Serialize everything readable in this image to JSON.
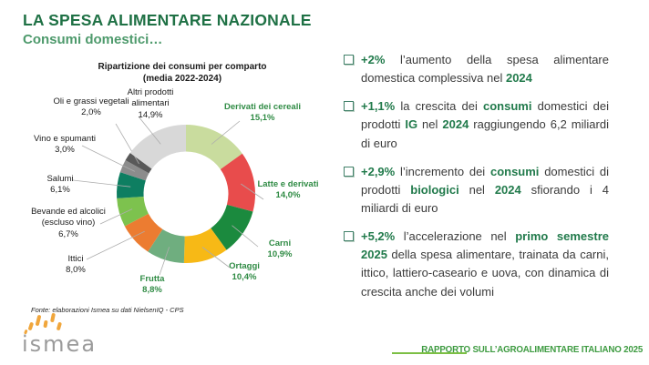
{
  "slide": {
    "title": "LA SPESA ALIMENTARE NAZIONALE",
    "subtitle": "Consumi domestici…",
    "source": "Fonte: elaborazioni Ismea su dati NielsenIQ - CPS",
    "footer": "RAPPORTO SULL’AGROALIMENTARE ITALIANO 2025",
    "logo_text": "ismea"
  },
  "colors": {
    "title_green": "#1F7145",
    "subtitle_green": "#4E9A6C",
    "highlight_green": "#217A4B",
    "segment_label_green": "#2F8B44",
    "footer_green": "#3E9B41",
    "footer_line_green": "#7CBF44",
    "body_text": "#3B3B3B"
  },
  "chart_data": {
    "type": "pie",
    "donut": true,
    "title": "Ripartizione dei consumi per comparto",
    "subtitle": "(media 2022-2024)",
    "legend_position": "none",
    "segments": [
      {
        "label": "Derivati dei cereali",
        "value": 15.1,
        "value_label": "15,1%",
        "color": "#C9DC9E",
        "label_style": "green"
      },
      {
        "label": "Latte e derivati",
        "value": 14.0,
        "value_label": "14,0%",
        "color": "#E84C4C",
        "label_style": "green"
      },
      {
        "label": "Carni",
        "value": 10.9,
        "value_label": "10,9%",
        "color": "#1B8A3E",
        "label_style": "green"
      },
      {
        "label": "Ortaggi",
        "value": 10.4,
        "value_label": "10,4%",
        "color": "#F7B916",
        "label_style": "green"
      },
      {
        "label": "Frutta",
        "value": 8.8,
        "value_label": "8,8%",
        "color": "#6FAE7F",
        "label_style": "green"
      },
      {
        "label": "Ittici",
        "value": 8.0,
        "value_label": "8,0%",
        "color": "#EC7C31",
        "label_style": "black"
      },
      {
        "label": "Bevande ed alcolici (escluso vino)",
        "value": 6.7,
        "value_label": "6,7%",
        "color": "#7DC24E",
        "label_style": "black"
      },
      {
        "label": "Salumi",
        "value": 6.1,
        "value_label": "6,1%",
        "color": "#0E7E61",
        "label_style": "black"
      },
      {
        "label": "Vino e spumanti",
        "value": 3.0,
        "value_label": "3,0%",
        "color": "#8C8C8C",
        "label_style": "black"
      },
      {
        "label": "Oli e grassi vegetali",
        "value": 2.0,
        "value_label": "2,0%",
        "color": "#595959",
        "label_style": "black"
      },
      {
        "label": "Altri prodotti alimentari",
        "value": 14.9,
        "value_label": "14,9%",
        "color": "#D8D8D8",
        "label_style": "black"
      }
    ]
  },
  "bullets": [
    {
      "runs": [
        {
          "text": "+2%",
          "highlight": true
        },
        {
          "text": " l’aumento della spesa alimentare domestica complessiva nel ",
          "highlight": false
        },
        {
          "text": "2024",
          "highlight": true
        }
      ]
    },
    {
      "runs": [
        {
          "text": "+1,1%",
          "highlight": true
        },
        {
          "text": " la crescita dei ",
          "highlight": false
        },
        {
          "text": "consumi",
          "highlight": true
        },
        {
          "text": " domestici dei prodotti ",
          "highlight": false
        },
        {
          "text": "IG",
          "highlight": true
        },
        {
          "text": " nel ",
          "highlight": false
        },
        {
          "text": "2024",
          "highlight": true
        },
        {
          "text": " raggiungendo 6,2 miliardi di euro",
          "highlight": false
        }
      ]
    },
    {
      "runs": [
        {
          "text": "+2,9%",
          "highlight": true
        },
        {
          "text": " l’incremento dei ",
          "highlight": false
        },
        {
          "text": "consumi",
          "highlight": true
        },
        {
          "text": " domestici di prodotti ",
          "highlight": false
        },
        {
          "text": "biologici",
          "highlight": true
        },
        {
          "text": " nel ",
          "highlight": false
        },
        {
          "text": "2024",
          "highlight": true
        },
        {
          "text": " sfiorando i 4 miliardi di euro",
          "highlight": false
        }
      ]
    },
    {
      "runs": [
        {
          "text": "+5,2%",
          "highlight": true
        },
        {
          "text": " l’accelerazione nel ",
          "highlight": false
        },
        {
          "text": "primo semestre 2025",
          "highlight": true
        },
        {
          "text": " della spesa alimentare, trainata da carni, ittico, lattiero-caseario e uova, con dinamica di crescita anche dei volumi",
          "highlight": false
        }
      ]
    }
  ]
}
